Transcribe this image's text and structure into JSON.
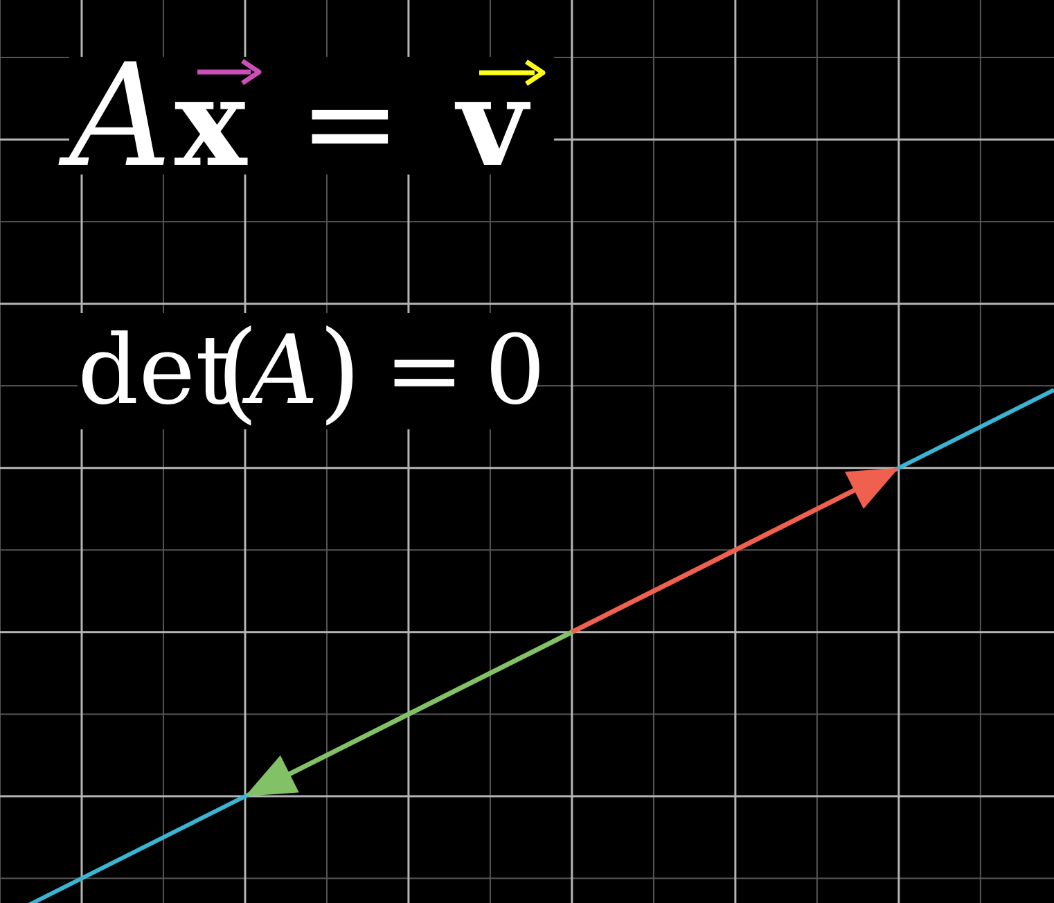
{
  "equation_top": {
    "matrix": "A",
    "input_vector": "x",
    "equals": "=",
    "output_vector": "v",
    "input_color": "#cc4fb8",
    "output_color": "#ffff1a",
    "text_color": "#ffffff"
  },
  "equation_det": {
    "func": "det",
    "open_paren": "(",
    "matrix": "A",
    "close_paren": ")",
    "equals": "=",
    "value": "0"
  },
  "plane": {
    "background": "#000000",
    "major_grid_color": "#b4b4b4",
    "minor_grid_color": "#555555",
    "x_range": [
      -3.5,
      2.95
    ],
    "y_range": [
      -1.65,
      3.85
    ],
    "line_color": "#3bb4d4",
    "line_slope": 0.5
  },
  "vectors": [
    {
      "name": "red-vector",
      "tip": [
        2,
        1
      ],
      "color": "#f0604f"
    },
    {
      "name": "green-vector",
      "tip": [
        -2,
        -1
      ],
      "color": "#83c167"
    }
  ]
}
